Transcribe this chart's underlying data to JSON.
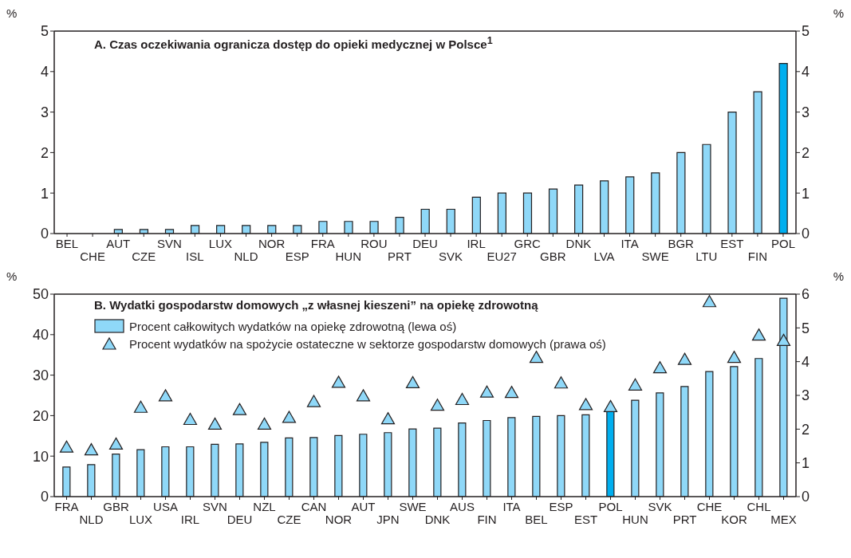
{
  "chart_data": [
    {
      "type": "bar",
      "title": "A. Czas oczekiwania ogranicza dostęp do opieki medycznej w Polsce$^{1}$",
      "ylabel": "%",
      "y2label": "%",
      "categories": [
        "BEL",
        "CHE",
        "AUT",
        "CZE",
        "SVN",
        "ISL",
        "LUX",
        "NLD",
        "NOR",
        "ESP",
        "FRA",
        "HUN",
        "ROU",
        "PRT",
        "DEU",
        "SVK",
        "IRL",
        "EU27",
        "GRC",
        "GBR",
        "DNK",
        "LVA",
        "ITA",
        "SWE",
        "BGR",
        "LTU",
        "EST",
        "FIN",
        "POL"
      ],
      "series": [
        {
          "colors": [
            "#8fd8f8",
            "#8fd8f8",
            "#8fd8f8",
            "#8fd8f8",
            "#8fd8f8",
            "#8fd8f8",
            "#8fd8f8",
            "#8fd8f8",
            "#8fd8f8",
            "#8fd8f8",
            "#8fd8f8",
            "#8fd8f8",
            "#8fd8f8",
            "#8fd8f8",
            "#8fd8f8",
            "#8fd8f8",
            "#8fd8f8",
            "#8fd8f8",
            "#8fd8f8",
            "#8fd8f8",
            "#8fd8f8",
            "#8fd8f8",
            "#8fd8f8",
            "#8fd8f8",
            "#8fd8f8",
            "#8fd8f8",
            "#8fd8f8",
            "#8fd8f8",
            "#00aeef"
          ],
          "values": [
            0,
            0,
            0.1,
            0.1,
            0.1,
            0.2,
            0.2,
            0.2,
            0.2,
            0.2,
            0.3,
            0.3,
            0.3,
            0.4,
            0.6,
            0.6,
            0.9,
            1.0,
            1.0,
            1.1,
            1.2,
            1.3,
            1.4,
            1.5,
            2.0,
            2.2,
            3.0,
            3.5,
            4.2
          ]
        }
      ],
      "ylim": [
        0,
        5
      ],
      "yticks": [
        0,
        1,
        2,
        3,
        4,
        5
      ],
      "y2lim": [
        0,
        5
      ],
      "y2ticks": [
        0,
        1,
        2,
        3,
        4,
        5
      ]
    },
    {
      "type": "bar",
      "title": "B. Wydatki gospodarstw domowych „z własnej kieszeni” na opiekę zdrowotną",
      "ylabel": "%",
      "y2label": "%",
      "legend": "top left",
      "categories": [
        "FRA",
        "NLD",
        "GBR",
        "LUX",
        "USA",
        "IRL",
        "SVN",
        "DEU",
        "NZL",
        "CZE",
        "CAN",
        "NOR",
        "AUT",
        "JPN",
        "SWE",
        "DNK",
        "AUS",
        "FIN",
        "ITA",
        "BEL",
        "ESP",
        "EST",
        "POL",
        "HUN",
        "SVK",
        "PRT",
        "CHE",
        "KOR",
        "CHL",
        "MEX"
      ],
      "series": [
        {
          "name": "Procent całkowitych wydatków na opiekę zdrowotną (lewa oś)",
          "colors": [
            "#8fd8f8",
            "#8fd8f8",
            "#8fd8f8",
            "#8fd8f8",
            "#8fd8f8",
            "#8fd8f8",
            "#8fd8f8",
            "#8fd8f8",
            "#8fd8f8",
            "#8fd8f8",
            "#8fd8f8",
            "#8fd8f8",
            "#8fd8f8",
            "#8fd8f8",
            "#8fd8f8",
            "#8fd8f8",
            "#8fd8f8",
            "#8fd8f8",
            "#8fd8f8",
            "#8fd8f8",
            "#8fd8f8",
            "#8fd8f8",
            "#00aeef",
            "#8fd8f8",
            "#8fd8f8",
            "#8fd8f8",
            "#8fd8f8",
            "#8fd8f8",
            "#8fd8f8",
            "#8fd8f8"
          ],
          "values": [
            7.3,
            7.9,
            10.5,
            11.6,
            12.3,
            12.3,
            12.9,
            13.0,
            13.4,
            14.5,
            14.6,
            15.1,
            15.4,
            15.8,
            16.7,
            16.9,
            18.2,
            18.8,
            19.5,
            19.8,
            20.0,
            20.2,
            22.1,
            23.8,
            25.6,
            27.2,
            30.9,
            32.1,
            34.1,
            49.0
          ]
        },
        {
          "name": "Procent wydatków na spożycie ostateczne w sektorze gospodarstw domowych (prawa oś)",
          "type": "scatter",
          "axis": "y2",
          "marker": "triangle",
          "color": "#8fd8f8",
          "values": [
            1.46,
            1.38,
            1.55,
            2.64,
            2.98,
            2.28,
            2.14,
            2.57,
            2.14,
            2.34,
            2.81,
            3.38,
            2.98,
            2.3,
            3.37,
            2.7,
            2.87,
            3.09,
            3.08,
            4.12,
            3.36,
            2.72,
            2.66,
            3.3,
            3.81,
            4.06,
            5.77,
            4.12,
            4.78,
            4.62
          ]
        }
      ],
      "ylim": [
        0,
        50
      ],
      "yticks": [
        0,
        10,
        20,
        30,
        40,
        50
      ],
      "y2lim": [
        0,
        6
      ],
      "y2ticks": [
        0,
        1,
        2,
        3,
        4,
        5,
        6
      ]
    }
  ]
}
